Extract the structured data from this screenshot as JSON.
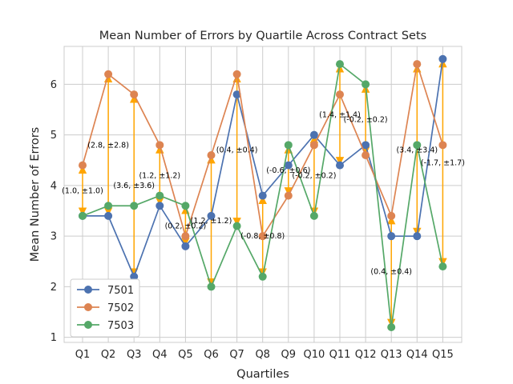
{
  "chart_data": {
    "type": "line",
    "title": "Mean Number of Errors by Quartile Across Contract Sets",
    "xlabel": "Quartiles",
    "ylabel": "Mean Number of Errors",
    "categories": [
      "Q1",
      "Q2",
      "Q3",
      "Q4",
      "Q5",
      "Q6",
      "Q7",
      "Q8",
      "Q9",
      "Q10",
      "Q11",
      "Q12",
      "Q13",
      "Q14",
      "Q15"
    ],
    "ylim": [
      0.9,
      6.75
    ],
    "yticks": [
      1,
      2,
      3,
      4,
      5,
      6
    ],
    "grid": true,
    "legend_position": "lower-left",
    "series": [
      {
        "name": "7501",
        "color": "#4c72b0",
        "values": [
          3.4,
          3.4,
          2.2,
          3.6,
          2.8,
          3.4,
          5.8,
          3.8,
          4.4,
          5.0,
          4.4,
          4.8,
          3.0,
          3.0,
          6.5
        ]
      },
      {
        "name": "7502",
        "color": "#dd8452",
        "values": [
          4.4,
          6.2,
          5.8,
          4.8,
          3.0,
          4.6,
          6.2,
          3.0,
          3.8,
          4.8,
          5.8,
          4.6,
          3.4,
          6.4,
          4.8
        ]
      },
      {
        "name": "7503",
        "color": "#55a868",
        "values": [
          3.4,
          3.6,
          3.6,
          3.8,
          3.6,
          2.0,
          3.2,
          2.2,
          4.8,
          3.4,
          6.4,
          6.0,
          1.2,
          4.8,
          2.4
        ]
      }
    ],
    "arrow_color": "#ffa500",
    "annotations": [
      {
        "text": "(1.0, ±1.0)"
      },
      {
        "text": "(2.8, ±2.8)"
      },
      {
        "text": "(3.6, ±3.6)"
      },
      {
        "text": "(1.2, ±1.2)"
      },
      {
        "text": "(0.2, ±0.2)"
      },
      {
        "text": "(1.2, ±1.2)"
      },
      {
        "text": "(0.4, ±0.4)"
      },
      {
        "text": "(-0.8, ±0.8)"
      },
      {
        "text": "(-0.6, ±0.6)"
      },
      {
        "text": "(-0.2, ±0.2)"
      },
      {
        "text": "(1.4, ±1.4)"
      },
      {
        "text": "(-0.2, ±0.2)"
      },
      {
        "text": "(0.4, ±0.4)"
      },
      {
        "text": "(3.4, ±3.4)"
      },
      {
        "text": "(-1.7, ±1.7)"
      }
    ]
  }
}
